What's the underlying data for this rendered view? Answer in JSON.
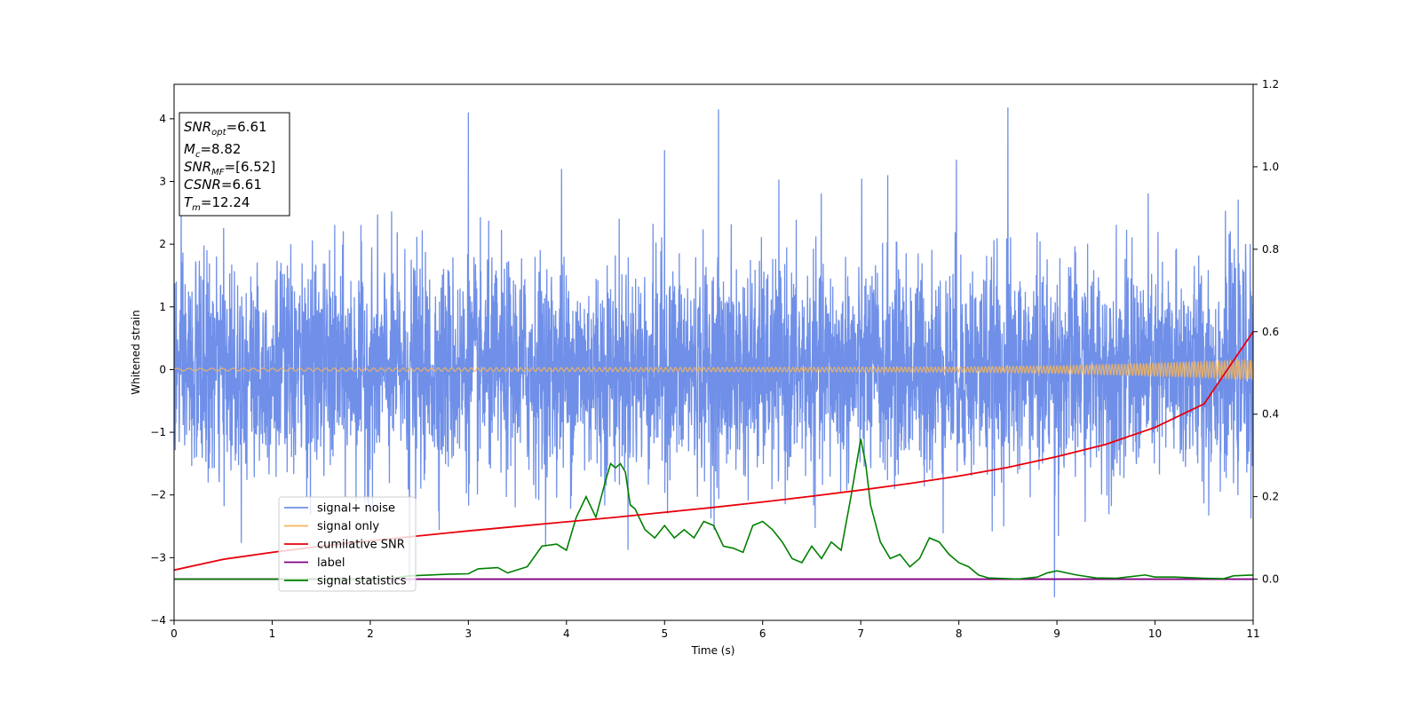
{
  "chart_data": {
    "type": "line",
    "xlabel": "Time (s)",
    "ylabel": "Whitened strain",
    "xlim": [
      0,
      11
    ],
    "ylim": [
      -4,
      4.55
    ],
    "y2lim": [
      -0.1,
      1.2
    ],
    "x_ticks": [
      "0",
      "1",
      "2",
      "3",
      "4",
      "5",
      "6",
      "7",
      "8",
      "9",
      "10",
      "11"
    ],
    "y_ticks": [
      "−4",
      "−3",
      "−2",
      "−1",
      "0",
      "1",
      "2",
      "3",
      "4"
    ],
    "y2_ticks": [
      "0.0",
      "0.2",
      "0.4",
      "0.6",
      "0.8",
      "1.0",
      "1.2"
    ],
    "info_box": [
      {
        "var": "SNR",
        "sub": "opt",
        "rest": "=6.61"
      },
      {
        "var": "M",
        "sub": "c",
        "rest": "=8.82"
      },
      {
        "var": "SNR",
        "sub": "MF",
        "rest": "=[6.52]"
      },
      {
        "var": "CSNR",
        "sub": "",
        "rest": "=6.61"
      },
      {
        "var": "T",
        "sub": "m",
        "rest": "=12.24"
      }
    ],
    "legend": {
      "position": "lower-left",
      "entries": [
        "signal+ noise",
        "signal only",
        "cumilative SNR",
        "label",
        "signal statistics"
      ]
    },
    "colors": {
      "signal_noise": "#6f8fe8",
      "signal_only": "#f5b55a",
      "cumulative_snr": "#e8000b",
      "label": "#800080",
      "signal_statistics": "#008000"
    },
    "series": [
      {
        "name": "signal+ noise",
        "axis": "left",
        "description_values": {
          "typical_range": [
            -2.2,
            2.2
          ],
          "max": 4.18,
          "min": -3.63,
          "peaks_at_x": [
            5.55,
            8.5,
            9.9
          ]
        }
      },
      {
        "name": "signal only",
        "axis": "left",
        "amplitude_at_x": {
          "x": [
            0,
            8,
            9,
            10,
            11
          ],
          "amplitude": [
            0.02,
            0.04,
            0.06,
            0.1,
            0.15
          ]
        }
      },
      {
        "name": "cumilative SNR",
        "axis": "right",
        "x": [
          0,
          0.5,
          1,
          1.5,
          2,
          2.5,
          3,
          3.5,
          4,
          4.5,
          5,
          5.5,
          6,
          6.5,
          7,
          7.5,
          8,
          8.5,
          9,
          9.5,
          10,
          10.5,
          11
        ],
        "values": [
          0.022,
          0.048,
          0.065,
          0.08,
          0.093,
          0.105,
          0.117,
          0.128,
          0.139,
          0.15,
          0.162,
          0.174,
          0.187,
          0.201,
          0.216,
          0.232,
          0.25,
          0.271,
          0.297,
          0.327,
          0.368,
          0.425,
          0.6
        ]
      },
      {
        "name": "label",
        "axis": "right",
        "x": [
          0,
          11
        ],
        "values": [
          0,
          0
        ]
      },
      {
        "name": "signal statistics",
        "axis": "right",
        "x": [
          0,
          1,
          2,
          2.2,
          2.4,
          2.6,
          2.8,
          3.0,
          3.1,
          3.3,
          3.4,
          3.6,
          3.75,
          3.9,
          4.0,
          4.1,
          4.2,
          4.3,
          4.4,
          4.45,
          4.5,
          4.55,
          4.6,
          4.65,
          4.7,
          4.8,
          4.9,
          5.0,
          5.1,
          5.2,
          5.3,
          5.4,
          5.5,
          5.6,
          5.7,
          5.8,
          5.9,
          6.0,
          6.1,
          6.2,
          6.3,
          6.4,
          6.5,
          6.6,
          6.7,
          6.8,
          6.9,
          7.0,
          7.05,
          7.1,
          7.2,
          7.3,
          7.4,
          7.5,
          7.6,
          7.7,
          7.8,
          7.9,
          8.0,
          8.1,
          8.2,
          8.3,
          8.6,
          8.8,
          8.9,
          9.0,
          9.2,
          9.4,
          9.6,
          9.9,
          10.0,
          10.2,
          10.5,
          10.7,
          10.8,
          11.0
        ],
        "values": [
          0.0,
          0.0,
          0.0,
          0.002,
          0.008,
          0.01,
          0.012,
          0.013,
          0.025,
          0.028,
          0.015,
          0.03,
          0.08,
          0.085,
          0.07,
          0.15,
          0.2,
          0.15,
          0.24,
          0.28,
          0.27,
          0.28,
          0.26,
          0.18,
          0.17,
          0.12,
          0.1,
          0.13,
          0.1,
          0.12,
          0.1,
          0.14,
          0.13,
          0.08,
          0.075,
          0.065,
          0.13,
          0.14,
          0.12,
          0.09,
          0.05,
          0.04,
          0.08,
          0.05,
          0.09,
          0.07,
          0.2,
          0.34,
          0.28,
          0.18,
          0.09,
          0.05,
          0.06,
          0.03,
          0.05,
          0.1,
          0.09,
          0.06,
          0.04,
          0.03,
          0.01,
          0.003,
          0.0,
          0.005,
          0.015,
          0.02,
          0.01,
          0.003,
          0.002,
          0.01,
          0.005,
          0.005,
          0.002,
          0.001,
          0.008,
          0.01
        ]
      }
    ]
  }
}
